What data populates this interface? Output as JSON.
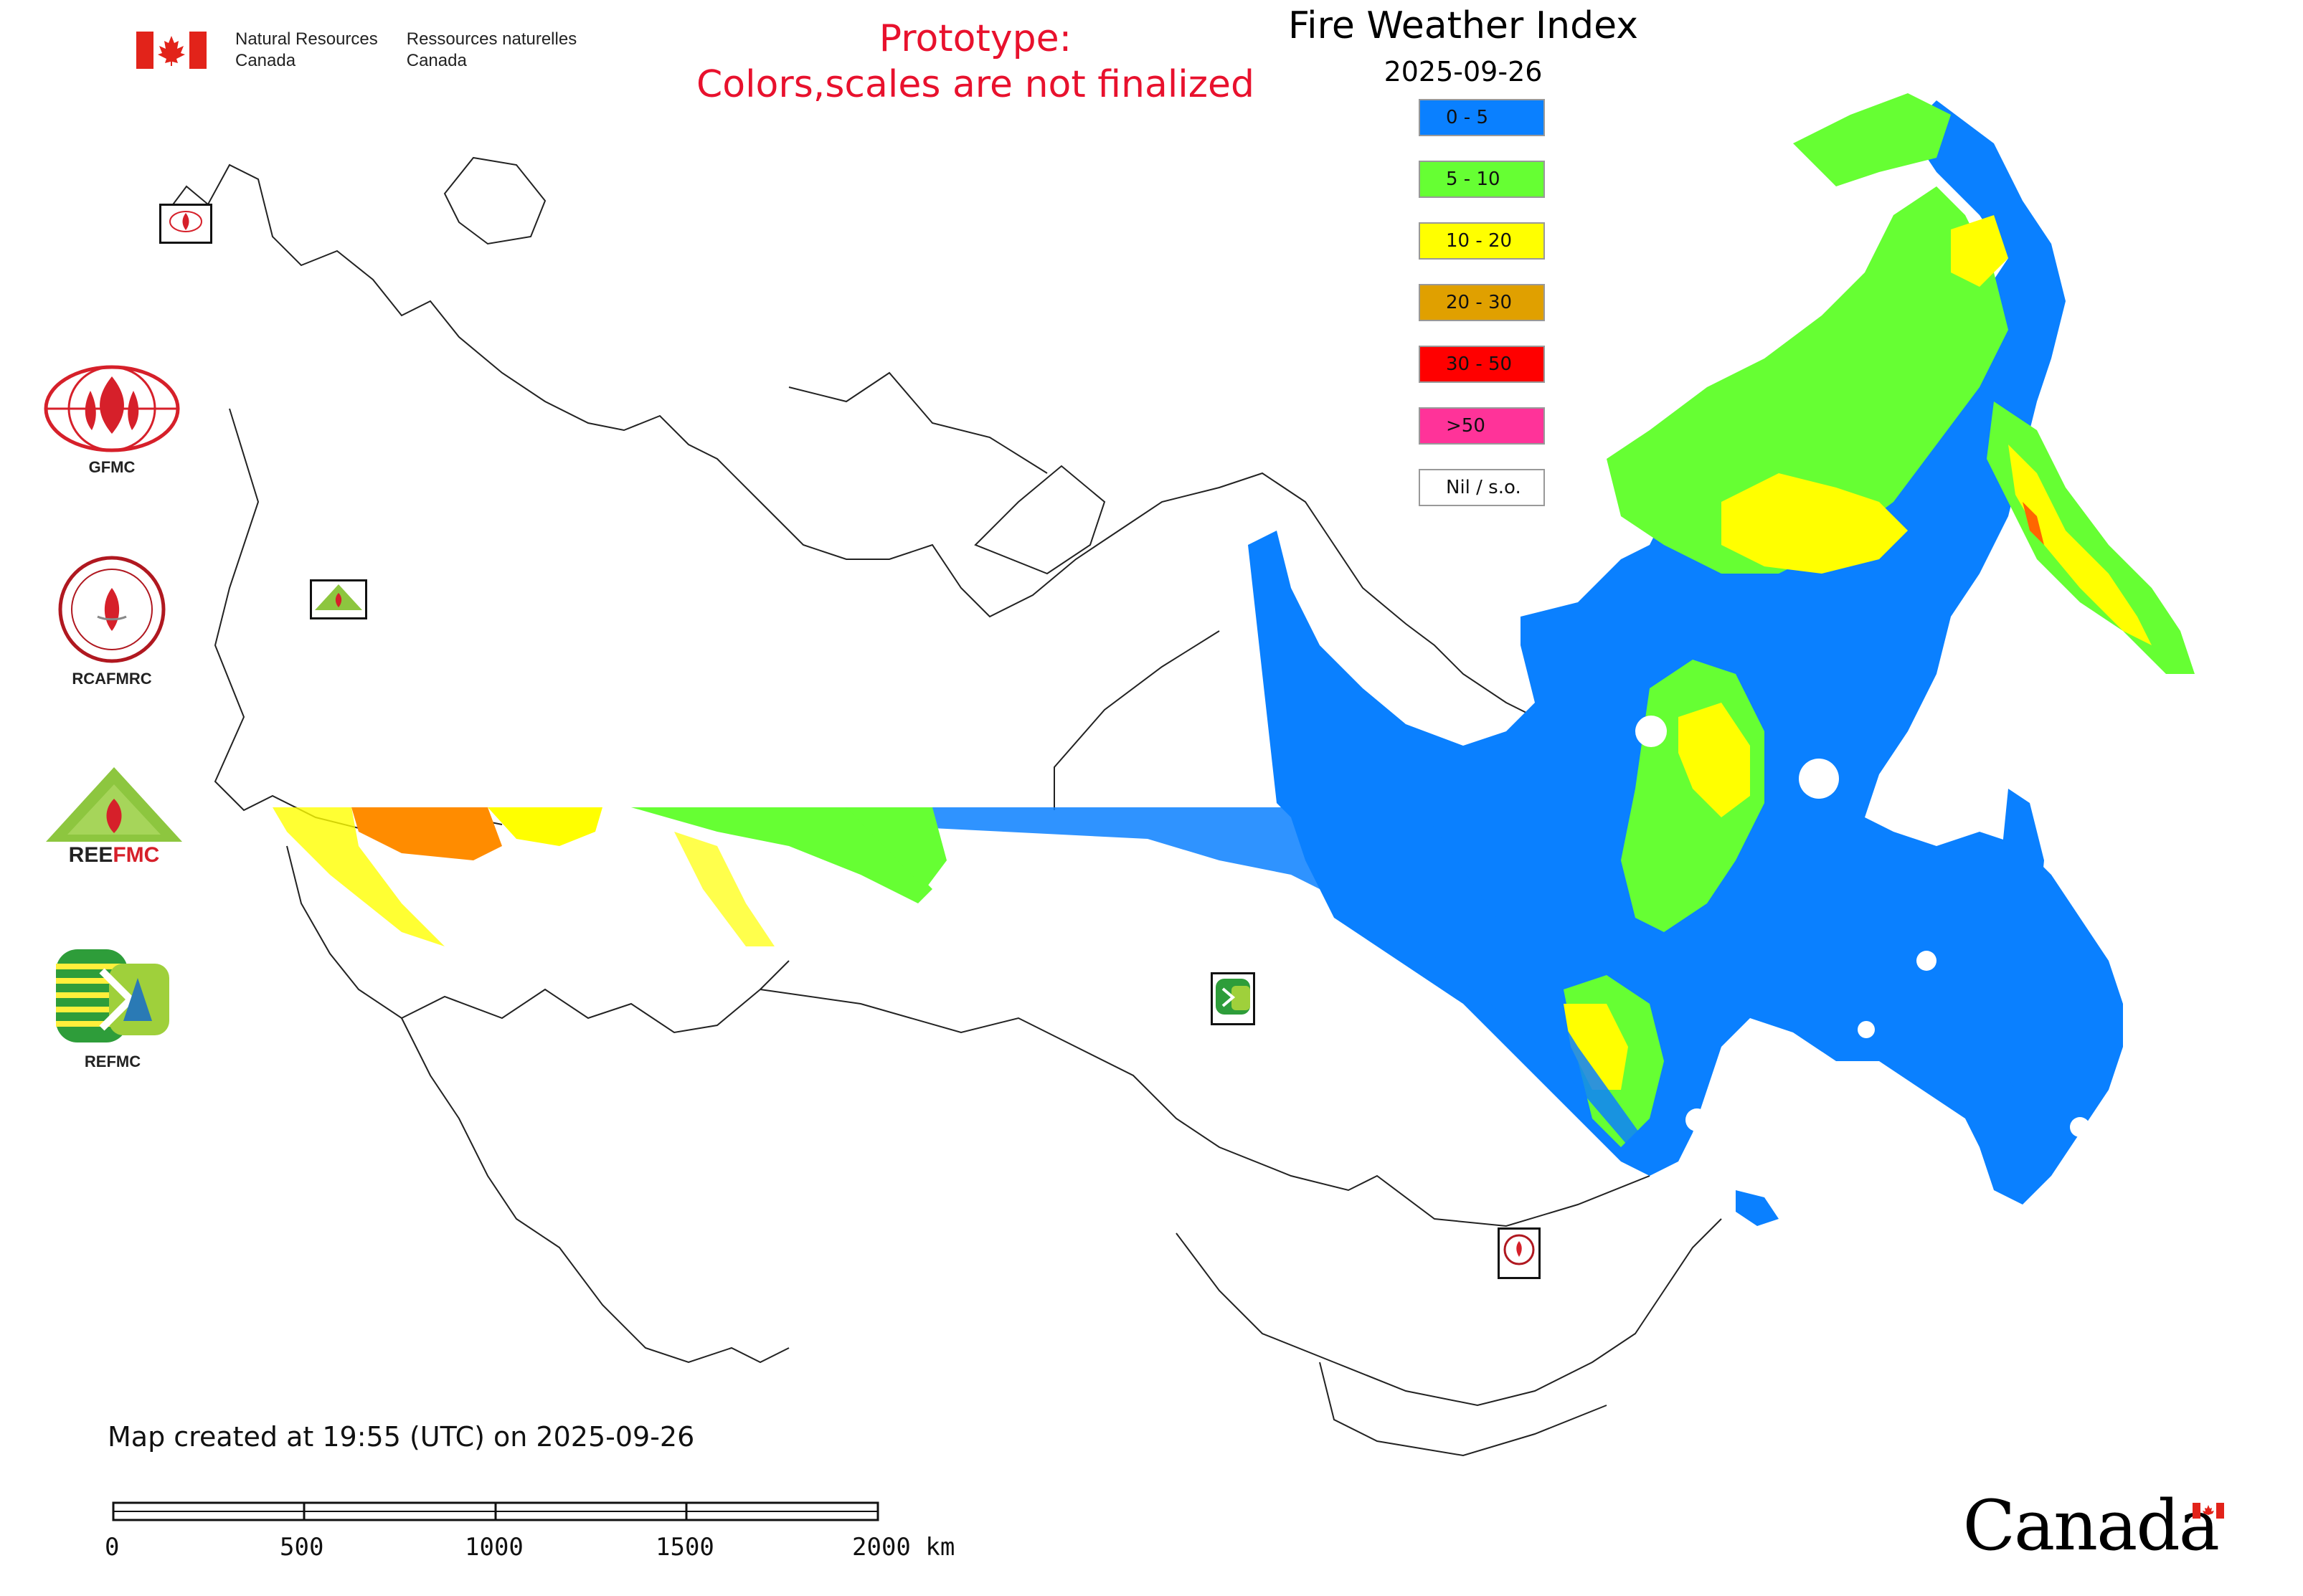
{
  "header": {
    "department_en_line1": "Natural Resources",
    "department_en_line2": "Canada",
    "department_fr_line1": "Ressources naturelles",
    "department_fr_line2": "Canada",
    "prototype_line1": "Prototype:",
    "prototype_line2": "Colors,scales are not finalized"
  },
  "map": {
    "title": "Fire Weather Index",
    "date": "2025-09-26",
    "legend": [
      {
        "label": "0 - 5",
        "color": "#0a80ff"
      },
      {
        "label": "5 - 10",
        "color": "#66ff33"
      },
      {
        "label": "10 - 20",
        "color": "#ffff00"
      },
      {
        "label": "20 - 30",
        "color": "#e0a000"
      },
      {
        "label": "30 - 50",
        "color": "#ff0000"
      },
      {
        "label": ">50",
        "color": "#ff3399"
      },
      {
        "label": "Nil / s.o.",
        "color": "#ffffff"
      }
    ]
  },
  "logos": [
    {
      "label": "GFMC",
      "icon": "gfmc-logo-icon"
    },
    {
      "label": "RCAFMRC",
      "icon": "rcafmrc-logo-icon"
    },
    {
      "label": "",
      "icon": "reefmc-logo-icon"
    },
    {
      "label": "REFMC",
      "icon": "refmc-logo-icon"
    }
  ],
  "footer": {
    "created": "Map created at 19:55 (UTC) on 2025-09-26",
    "scale_labels": [
      "0",
      "500",
      "1000",
      "1500",
      "2000 km"
    ],
    "wordmark": "Canad",
    "wordmark_last": "a"
  }
}
